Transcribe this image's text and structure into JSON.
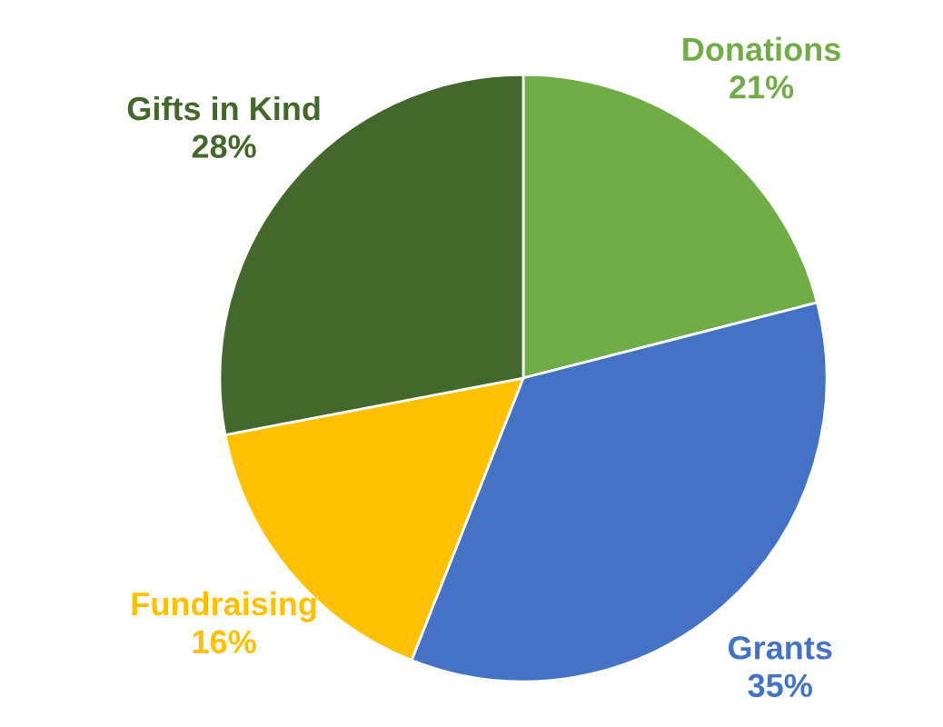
{
  "chart_data": {
    "type": "pie",
    "categories": [
      "Donations",
      "Grants",
      "Fundraising",
      "Gifts in Kind"
    ],
    "values": [
      21,
      35,
      16,
      28
    ],
    "value_labels": [
      "21%",
      "35%",
      "16%",
      "28%"
    ],
    "colors": [
      "#70ad47",
      "#4472c4",
      "#ffc000",
      "#43682b"
    ],
    "legend": false
  }
}
